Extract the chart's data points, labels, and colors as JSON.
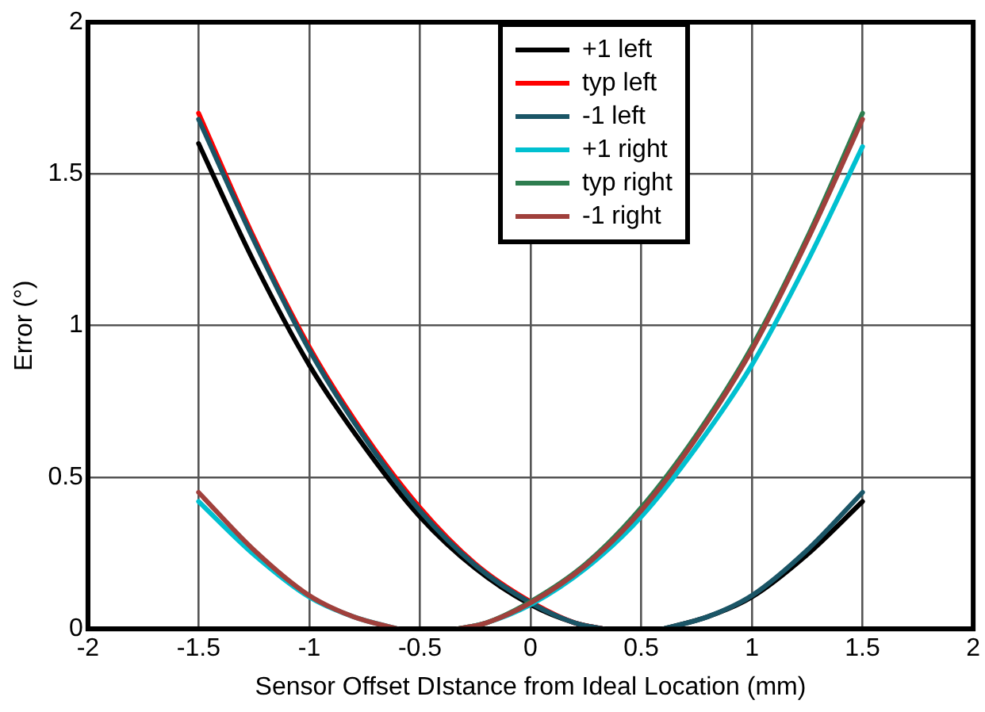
{
  "chart_data": {
    "type": "line",
    "xlabel": "Sensor Offset DIstance from Ideal Location (mm)",
    "ylabel": "Error (°)",
    "xlim": [
      -2,
      2
    ],
    "xticks": [
      -2,
      -1.5,
      -1,
      -0.5,
      0,
      0.5,
      1,
      1.5,
      2
    ],
    "ylim": [
      0,
      2
    ],
    "yticks": [
      0,
      0.5,
      1,
      1.5,
      2
    ],
    "grid": true,
    "legend": "top",
    "marker": "none",
    "line_style": "solid",
    "series": [
      {
        "name": "+1 left",
        "color": "#000000",
        "x": [
          -1.5,
          -1.25,
          -1,
          -0.75,
          -0.5,
          -0.25,
          0,
          0.2,
          0.33,
          0.45,
          0.6,
          0.8,
          1,
          1.25,
          1.5
        ],
        "values": [
          1.6,
          1.21,
          0.87,
          0.6,
          0.37,
          0.2,
          0.08,
          0.02,
          0,
          null,
          0,
          0.04,
          0.105,
          0.245,
          0.42
        ]
      },
      {
        "name": "typ left",
        "color": "#ff0000",
        "x": [
          -1.5,
          -1.25,
          -1,
          -0.75,
          -0.5,
          -0.25,
          0,
          0.2,
          0.33
        ],
        "values": [
          1.7,
          1.29,
          0.93,
          0.64,
          0.4,
          0.215,
          0.09,
          0.02,
          0
        ]
      },
      {
        "name": "-1 left",
        "color": "#1a5566",
        "x": [
          -1.5,
          -1.25,
          -1,
          -0.75,
          -0.5,
          -0.25,
          0,
          0.2,
          0.33,
          0.45,
          0.6,
          0.8,
          1,
          1.25,
          1.5
        ],
        "values": [
          1.68,
          1.28,
          0.92,
          0.63,
          0.39,
          0.21,
          0.086,
          0.02,
          0,
          null,
          0,
          0.04,
          0.11,
          0.26,
          0.45
        ]
      },
      {
        "name": "+1 right",
        "color": "#00c0d0",
        "x": [
          -1.5,
          -1.25,
          -1,
          -0.8,
          -0.6,
          -0.45,
          -0.33,
          -0.2,
          0,
          0.25,
          0.5,
          0.75,
          1,
          1.25,
          1.5
        ],
        "values": [
          0.42,
          0.245,
          0.105,
          0.04,
          0,
          null,
          0,
          0.02,
          0.08,
          0.2,
          0.37,
          0.6,
          0.87,
          1.21,
          1.59
        ]
      },
      {
        "name": "typ right",
        "color": "#2e7d4f",
        "x": [
          -0.33,
          -0.2,
          0,
          0.25,
          0.5,
          0.75,
          1,
          1.25,
          1.5
        ],
        "values": [
          0,
          0.02,
          0.09,
          0.215,
          0.4,
          0.64,
          0.93,
          1.29,
          1.7
        ]
      },
      {
        "name": "-1 right",
        "color": "#a0403c",
        "x": [
          -1.5,
          -1.25,
          -1,
          -0.8,
          -0.6,
          -0.45,
          -0.33,
          -0.2,
          0,
          0.25,
          0.5,
          0.75,
          1,
          1.25,
          1.5
        ],
        "values": [
          0.45,
          0.26,
          0.11,
          0.04,
          0,
          null,
          0,
          0.02,
          0.086,
          0.21,
          0.39,
          0.63,
          0.92,
          1.28,
          1.68
        ]
      }
    ]
  }
}
